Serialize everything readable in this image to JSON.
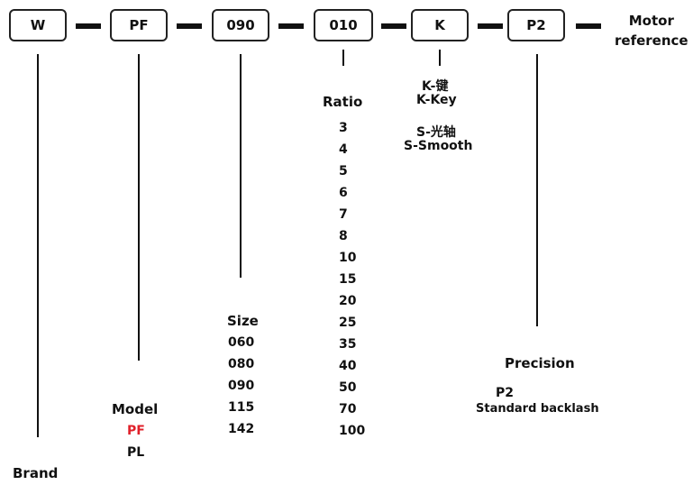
{
  "code_boxes": [
    {
      "label": "W"
    },
    {
      "label": "PF"
    },
    {
      "label": "090"
    },
    {
      "label": "010"
    },
    {
      "label": "K"
    },
    {
      "label": "P2"
    }
  ],
  "motor_reference": {
    "line1": "Motor",
    "line2": "reference"
  },
  "brand": {
    "title": "Brand"
  },
  "model": {
    "title": "Model",
    "options": [
      "PF",
      "PL"
    ]
  },
  "size": {
    "title": "Size",
    "options": [
      "060",
      "080",
      "090",
      "115",
      "142"
    ]
  },
  "ratio": {
    "title": "Ratio",
    "options": [
      "3",
      "4",
      "5",
      "6",
      "7",
      "8",
      "10",
      "15",
      "20",
      "25",
      "35",
      "40",
      "50",
      "70",
      "100"
    ]
  },
  "shaft": {
    "key_cn": "K-键",
    "key_en": "K-Key",
    "smooth_cn": "S-光轴",
    "smooth_en": "S-Smooth"
  },
  "precision": {
    "title": "Precision",
    "code": "P2",
    "description": "Standard backlash"
  },
  "colors": {
    "highlight": "#e0202a",
    "ink": "#111111"
  }
}
